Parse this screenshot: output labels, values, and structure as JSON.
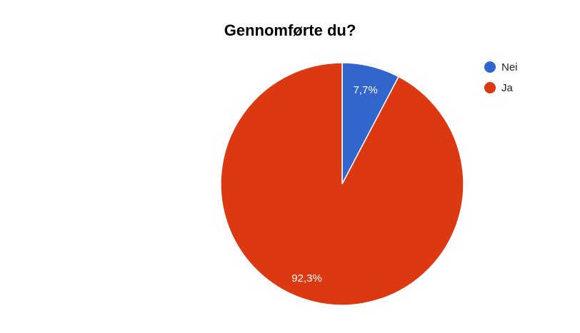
{
  "chart_data": {
    "type": "pie",
    "title": "Gennomførte du?",
    "slices": [
      {
        "label": "Nei",
        "value": 7.7,
        "display": "7,7%",
        "color": "#3366cc"
      },
      {
        "label": "Ja",
        "value": 92.3,
        "display": "92,3%",
        "color": "#dc3912"
      }
    ],
    "start_angle_deg": 0,
    "direction": "clockwise",
    "legend_position": "right"
  }
}
